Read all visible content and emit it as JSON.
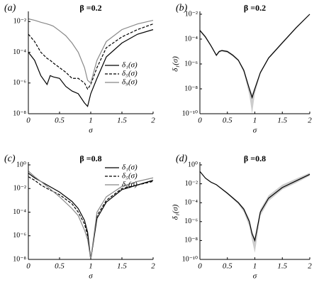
{
  "chart_data": [
    {
      "type": "line",
      "panel": "(a)",
      "title": "β =0.2",
      "xlabel": "σ",
      "log_y": true,
      "legend": "lower right",
      "x": [
        0,
        0.1,
        0.2,
        0.3,
        0.35,
        0.4,
        0.5,
        0.6,
        0.7,
        0.8,
        0.9,
        0.95,
        1,
        1.1,
        1.25,
        1.5,
        1.75,
        2
      ],
      "xlim": [
        0,
        2
      ],
      "xticks": [
        0,
        0.5,
        1,
        1.5,
        2
      ],
      "ylim": [
        1e-08,
        0.03
      ],
      "yticks": [
        {
          "value": 1e-08,
          "label": "10⁻⁸"
        },
        {
          "value": 1e-06,
          "label": "10⁻⁶"
        },
        {
          "value": 0.0001,
          "label": "10⁻⁴"
        },
        {
          "value": 0.01,
          "label": "10⁻²"
        }
      ],
      "series": [
        {
          "name": "δ₁(σ)",
          "color": "#000000",
          "style": "solid",
          "values": [
            0.0001,
            3e-05,
            3e-06,
            8e-07,
            3e-06,
            2.5e-06,
            2e-06,
            6e-07,
            3e-07,
            2e-07,
            5e-08,
            3e-08,
            2e-07,
            2e-06,
            5e-05,
            0.0004,
            0.0015,
            0.003
          ]
        },
        {
          "name": "δ₅(σ)",
          "color": "#000000",
          "style": "dashed",
          "values": [
            0.0015,
            0.0005,
            0.0001,
            4e-05,
            3e-05,
            2e-05,
            1e-05,
            5e-06,
            2e-06,
            2e-06,
            1e-06,
            4e-07,
            8e-07,
            1e-05,
            0.0002,
            0.001,
            0.003,
            0.007
          ]
        },
        {
          "name": "δ₉(σ)",
          "color": "#888888",
          "style": "solid",
          "values": [
            0.015,
            0.012,
            0.009,
            0.007,
            0.006,
            0.005,
            0.0025,
            0.0012,
            0.0004,
            0.0001,
            1e-05,
            1.5e-06,
            1e-06,
            3e-05,
            0.0005,
            0.003,
            0.007,
            0.012
          ]
        }
      ]
    },
    {
      "type": "line",
      "panel": "(b)",
      "title": "β =0.2",
      "xlabel": "σ",
      "ylabel": "δ₁(σ)",
      "log_y": true,
      "x": [
        0,
        0.1,
        0.2,
        0.3,
        0.35,
        0.4,
        0.5,
        0.6,
        0.7,
        0.8,
        0.9,
        0.95,
        1,
        1.1,
        1.25,
        1.5,
        1.75,
        2
      ],
      "xlim": [
        0,
        2
      ],
      "xticks": [
        0,
        0.5,
        1,
        1.5,
        2
      ],
      "ylim": [
        1e-10,
        0.01
      ],
      "yticks": [
        {
          "value": 1e-10,
          "label": "10⁻¹⁰"
        },
        {
          "value": 1e-08,
          "label": "10⁻⁸"
        },
        {
          "value": 1e-06,
          "label": "10⁻⁶"
        },
        {
          "value": 0.0001,
          "label": "10⁻⁴"
        },
        {
          "value": 0.01,
          "label": "10⁻²"
        }
      ],
      "band": {
        "color": "#cccccc",
        "upper": [
          0.0006,
          0.00018,
          3.5e-05,
          6e-06,
          1.2e-05,
          1.4e-05,
          1.2e-05,
          6e-06,
          2.4e-06,
          4e-07,
          1.5e-08,
          4e-09,
          1.5e-08,
          2.5e-07,
          3.5e-06,
          6e-05,
          0.0009,
          0.011
        ],
        "lower": [
          0.0004,
          0.00012,
          2.5e-05,
          4e-06,
          8e-06,
          1e-05,
          8e-06,
          4e-06,
          1.6e-06,
          2e-07,
          3e-09,
          1e-10,
          4e-09,
          1.5e-07,
          2.5e-06,
          4e-05,
          0.0007,
          0.009
        ]
      },
      "series": [
        {
          "color": "#000000",
          "style": "solid",
          "values": [
            0.0005,
            0.00015,
            3e-05,
            5e-06,
            1e-05,
            1.2e-05,
            1e-05,
            5e-06,
            2e-06,
            3e-07,
            1e-08,
            2e-09,
            1e-08,
            2e-07,
            3e-06,
            5e-05,
            0.0008,
            0.01
          ]
        }
      ]
    },
    {
      "type": "line",
      "panel": "(c)",
      "title": "β =0.8",
      "xlabel": "σ",
      "log_y": true,
      "legend": "upper right",
      "x": [
        0,
        0.1,
        0.2,
        0.3,
        0.5,
        0.7,
        0.8,
        0.9,
        0.95,
        1,
        1.1,
        1.25,
        1.5,
        1.75,
        2
      ],
      "xlim": [
        0,
        2
      ],
      "xticks": [
        0,
        0.5,
        1,
        1.5,
        2
      ],
      "ylim": [
        1e-08,
        1
      ],
      "yticks": [
        {
          "value": 1e-08,
          "label": "10⁻⁸"
        },
        {
          "value": 1e-06,
          "label": "10⁻⁶"
        },
        {
          "value": 0.0001,
          "label": "10⁻⁴"
        },
        {
          "value": 0.01,
          "label": "10⁻²"
        },
        {
          "value": 1,
          "label": "10⁰"
        }
      ],
      "series": [
        {
          "name": "δ₁(σ)",
          "color": "#000000",
          "style": "solid",
          "values": [
            0.2,
            0.08,
            0.04,
            0.02,
            0.005,
            0.0008,
            0.0002,
            2e-05,
            2e-06,
            1e-08,
            3e-05,
            0.0007,
            0.008,
            0.02,
            0.05
          ]
        },
        {
          "name": "δ₅(σ)",
          "color": "#000000",
          "style": "dashed",
          "values": [
            0.1,
            0.05,
            0.02,
            0.01,
            0.003,
            0.0005,
            0.0001,
            1e-05,
            1e-06,
            1e-08,
            5e-05,
            0.001,
            0.01,
            0.02,
            0.04
          ]
        },
        {
          "name": "δ₉(σ)",
          "color": "#888888",
          "style": "solid",
          "values": [
            0.3,
            0.1,
            0.04,
            0.015,
            0.002,
            0.0002,
            5e-05,
            3e-06,
            5e-07,
            1e-08,
            0.0001,
            0.002,
            0.015,
            0.04,
            0.08
          ]
        }
      ]
    },
    {
      "type": "line",
      "panel": "(d)",
      "title": "β =0.8",
      "xlabel": "σ",
      "ylabel": "δ₁(σ)",
      "log_y": true,
      "x": [
        0,
        0.1,
        0.2,
        0.3,
        0.5,
        0.7,
        0.8,
        0.9,
        0.95,
        1,
        1.1,
        1.25,
        1.5,
        1.75,
        2
      ],
      "xlim": [
        0,
        2
      ],
      "xticks": [
        0,
        0.5,
        1,
        1.5,
        2
      ],
      "ylim": [
        1e-10,
        1
      ],
      "yticks": [
        {
          "value": 1e-10,
          "label": "10⁻¹⁰"
        },
        {
          "value": 1e-08,
          "label": "10⁻⁸"
        },
        {
          "value": 1e-06,
          "label": "10⁻⁶"
        },
        {
          "value": 0.0001,
          "label": "10⁻⁴"
        },
        {
          "value": 0.01,
          "label": "10⁻²"
        },
        {
          "value": 1,
          "label": "10⁰"
        }
      ],
      "band": {
        "color": "#cccccc",
        "upper": [
          0.22,
          0.045,
          0.017,
          0.009,
          0.0012,
          0.00013,
          3e-05,
          2e-06,
          1e-07,
          2e-08,
          2e-05,
          0.0006,
          0.008,
          0.035,
          0.15
        ],
        "lower": [
          0.18,
          0.035,
          0.013,
          0.007,
          0.0008,
          7e-05,
          1e-05,
          3e-07,
          1e-08,
          5e-10,
          4e-06,
          0.00015,
          0.0025,
          0.012,
          0.07
        ]
      },
      "series": [
        {
          "color": "#000000",
          "style": "solid",
          "values": [
            0.2,
            0.04,
            0.015,
            0.008,
            0.001,
            0.0001,
            2e-05,
            1e-06,
            5e-08,
            1e-08,
            1e-05,
            0.0003,
            0.004,
            0.02,
            0.1
          ]
        }
      ]
    }
  ]
}
